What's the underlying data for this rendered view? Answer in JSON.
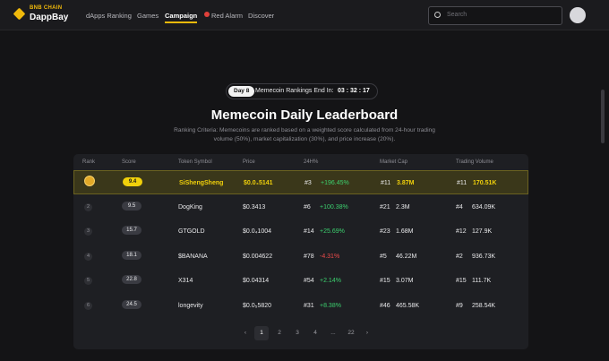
{
  "nav": {
    "brand_top": "BNB CHAIN",
    "brand": "DappBay",
    "links": [
      "dApps Ranking",
      "Games",
      "Campaign",
      "Red Alarm",
      "Discover"
    ],
    "active": 2,
    "search_placeholder": "Search"
  },
  "banner": {
    "day": "Day 8",
    "countdown_label": "Memecoin Rankings End In:",
    "countdown": "03 : 32 : 17"
  },
  "title": "Memecoin Daily Leaderboard",
  "description": "Ranking Criteria: Memecoins are ranked based on a weighted score calculated from 24-hour trading volume (50%), market capitalization (30%), and price increase (20%).",
  "table": {
    "headers": [
      "Rank",
      "Score",
      "Token Symbol",
      "Price",
      "24H%",
      "Market Cap",
      "Trading Volume"
    ],
    "rows": [
      {
        "score": "9.4",
        "token": "SiShengSheng",
        "price": "$0.0₄5141",
        "change_rank": "#3",
        "change": "+196.45%",
        "mc_rank": "#11",
        "mc": "3.87M",
        "vol_rank": "#11",
        "vol": "170.51K"
      },
      {
        "rank": "2",
        "score": "9.5",
        "token": "DogKing",
        "price": "$0.3413",
        "change_rank": "#6",
        "change": "+100.38%",
        "mc_rank": "#21",
        "mc": "2.3M",
        "vol_rank": "#4",
        "vol": "634.09K"
      },
      {
        "rank": "3",
        "score": "15.7",
        "token": "GTGOLD",
        "price": "$0.0₄1004",
        "change_rank": "#14",
        "change": "+25.69%",
        "mc_rank": "#23",
        "mc": "1.68M",
        "vol_rank": "#12",
        "vol": "127.9K"
      },
      {
        "rank": "4",
        "score": "18.1",
        "token": "$BANANA",
        "price": "$0.004622",
        "change_rank": "#78",
        "change": "-4.31%",
        "mc_rank": "#5",
        "mc": "46.22M",
        "vol_rank": "#2",
        "vol": "936.73K"
      },
      {
        "rank": "5",
        "score": "22.8",
        "token": "X314",
        "price": "$0.04314",
        "change_rank": "#54",
        "change": "+2.14%",
        "mc_rank": "#15",
        "mc": "3.07M",
        "vol_rank": "#15",
        "vol": "111.7K"
      },
      {
        "rank": "6",
        "score": "24.5",
        "token": "longevity",
        "price": "$0.0₅5820",
        "change_rank": "#31",
        "change": "+8.38%",
        "mc_rank": "#46",
        "mc": "465.58K",
        "vol_rank": "#9",
        "vol": "258.54K"
      }
    ]
  },
  "pagination": {
    "pages": [
      "1",
      "2",
      "3",
      "4",
      "...",
      "22"
    ],
    "current": 0
  }
}
